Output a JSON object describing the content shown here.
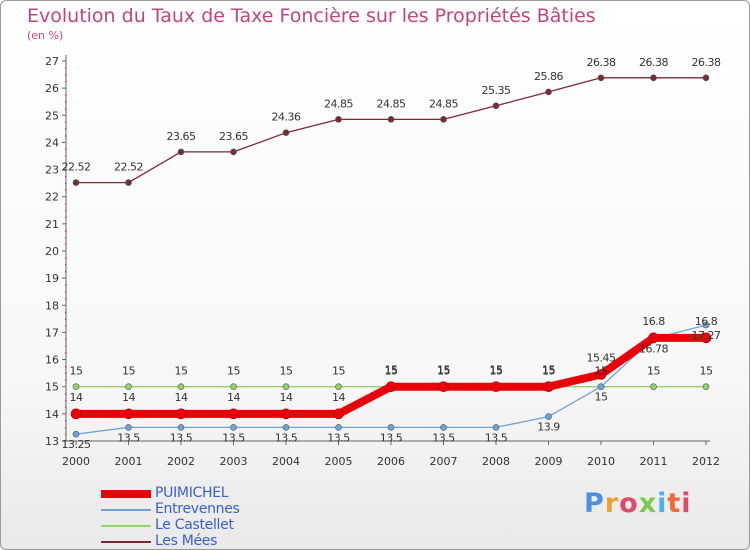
{
  "title": "Evolution du Taux de Taxe Foncière sur les Propriétés Bâties",
  "unit_label": "(en %)",
  "brand": "Proxiti",
  "brand_colors": [
    "#4f8fe0",
    "#f0a030",
    "#e04a6a",
    "#7ec850",
    "#4fb0e8",
    "#f06a3a",
    "#e04a6a"
  ],
  "chart_data": {
    "type": "line",
    "x": [
      2000,
      2001,
      2002,
      2003,
      2004,
      2005,
      2006,
      2007,
      2008,
      2009,
      2010,
      2011,
      2012
    ],
    "ylim": [
      13,
      27
    ],
    "yticks": [
      13,
      14,
      15,
      16,
      17,
      18,
      19,
      20,
      21,
      22,
      23,
      24,
      25,
      26,
      27
    ],
    "xlabel": "",
    "ylabel": "",
    "grid": false,
    "legend_position": "bottom-left",
    "series": [
      {
        "name": "PUIMICHEL",
        "color": "#e8000b",
        "values": [
          14,
          14,
          14,
          14,
          14,
          14,
          15,
          15,
          15,
          15,
          15.45,
          16.8,
          16.8
        ],
        "labels": [
          "14",
          "14",
          "14",
          "14",
          "14",
          "14",
          "15",
          "15",
          "15",
          "15",
          "15.45",
          "16.8",
          "16.8"
        ]
      },
      {
        "name": "Entrevennes",
        "color": "#6fa3d8",
        "values": [
          13.25,
          13.5,
          13.5,
          13.5,
          13.5,
          13.5,
          13.5,
          13.5,
          13.5,
          13.9,
          15,
          16.78,
          17.27
        ],
        "labels": [
          "13.25",
          "13.5",
          "13.5",
          "13.5",
          "13.5",
          "13.5",
          "13.5",
          "13.5",
          "13.5",
          "13.9",
          "15",
          "16.78",
          "17.27"
        ]
      },
      {
        "name": "Le Castellet",
        "color": "#8fd46a",
        "values": [
          15,
          15,
          15,
          15,
          15,
          15,
          15,
          15,
          15,
          15,
          15,
          15,
          15
        ],
        "labels": [
          "15",
          "15",
          "15",
          "15",
          "15",
          "15",
          "15",
          "15",
          "15",
          "15",
          "15",
          "15",
          "15"
        ]
      },
      {
        "name": "Les Mées",
        "color": "#7a2a36",
        "values": [
          22.52,
          22.52,
          23.65,
          23.65,
          24.36,
          24.85,
          24.85,
          24.85,
          25.35,
          25.86,
          26.38,
          26.38,
          26.38
        ],
        "labels": [
          "22.52",
          "22.52",
          "23.65",
          "23.65",
          "24.36",
          "24.85",
          "24.85",
          "24.85",
          "25.35",
          "25.86",
          "26.38",
          "26.38",
          "26.38"
        ]
      }
    ]
  }
}
